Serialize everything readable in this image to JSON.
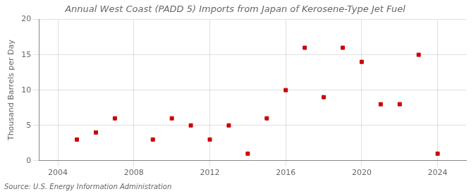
{
  "chart_data": {
    "type": "scatter",
    "title": "Annual West Coast (PADD 5) Imports from Japan of Kerosene-Type Jet Fuel",
    "ylabel": "Thousand Barrels per Day",
    "annotations": [
      "Source: U.S. Energy Information Administration"
    ],
    "x": [
      2005,
      2006,
      2007,
      2009,
      2010,
      2011,
      2012,
      2013,
      2014,
      2015,
      2016,
      2017,
      2018,
      2019,
      2020,
      2021,
      2022,
      2023,
      2024
    ],
    "values": [
      3,
      4,
      6,
      3,
      6,
      5,
      3,
      5,
      1,
      6,
      10,
      16,
      9,
      16,
      14,
      8,
      8,
      15,
      1
    ],
    "color": "#cc0000",
    "marker": "square",
    "xlim": [
      2003,
      2025.5
    ],
    "ylim": [
      0,
      20
    ],
    "xticks": [
      2004,
      2008,
      2012,
      2016,
      2020,
      2024
    ],
    "yticks": [
      0,
      5,
      10,
      15,
      20
    ],
    "grid": true
  }
}
